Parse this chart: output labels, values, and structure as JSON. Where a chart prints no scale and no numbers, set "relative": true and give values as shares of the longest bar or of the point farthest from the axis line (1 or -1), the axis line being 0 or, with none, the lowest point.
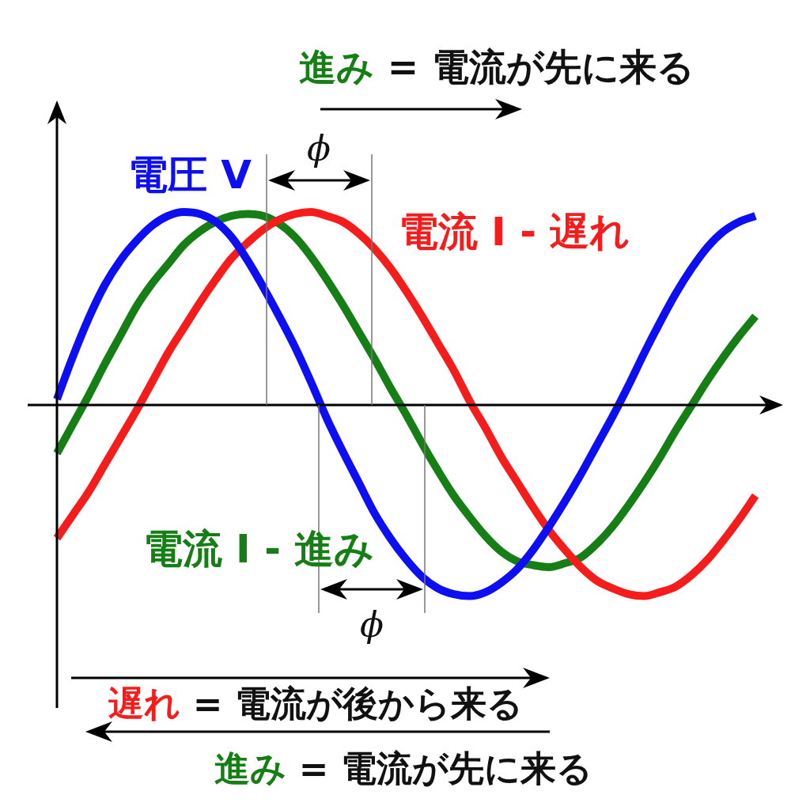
{
  "chart_data": {
    "type": "line",
    "relative": true,
    "line_style": "solid",
    "categories": [
      null,
      null,
      null,
      null,
      null,
      null,
      null,
      null,
      null,
      null,
      null,
      null,
      null,
      null,
      null,
      null,
      null,
      null,
      null,
      null,
      null,
      null,
      null,
      null,
      null,
      null,
      null,
      null,
      null,
      null,
      null,
      null,
      null,
      null,
      null,
      null,
      null,
      null,
      null,
      null,
      null,
      null,
      null,
      null,
      null
    ],
    "series": [
      {
        "name": "電圧 V",
        "color": "#0d0ef2",
        "values": [
          0.03,
          0.25,
          0.45,
          0.62,
          0.75,
          0.85,
          0.93,
          0.98,
          1.0,
          0.99,
          0.95,
          0.87,
          0.75,
          0.61,
          0.46,
          0.3,
          0.12,
          -0.07,
          -0.24,
          -0.4,
          -0.56,
          -0.69,
          -0.8,
          -0.89,
          -0.95,
          -0.98,
          -0.99,
          -0.97,
          -0.92,
          -0.85,
          -0.75,
          -0.63,
          -0.5,
          -0.36,
          -0.21,
          -0.06,
          0.1,
          0.27,
          0.43,
          0.58,
          0.71,
          0.82,
          0.9,
          0.95,
          0.98
        ]
      },
      {
        "name": "電流 I - 遅れ",
        "color": "#f51c1c",
        "values": [
          -0.69,
          -0.57,
          -0.45,
          -0.31,
          -0.17,
          -0.03,
          0.12,
          0.27,
          0.4,
          0.53,
          0.65,
          0.76,
          0.84,
          0.91,
          0.96,
          0.99,
          1.0,
          0.98,
          0.95,
          0.89,
          0.81,
          0.71,
          0.59,
          0.46,
          0.32,
          0.18,
          0.02,
          -0.12,
          -0.27,
          -0.4,
          -0.53,
          -0.65,
          -0.75,
          -0.84,
          -0.91,
          -0.95,
          -0.98,
          -0.99,
          -0.97,
          -0.94,
          -0.88,
          -0.8,
          -0.7,
          -0.59,
          -0.47
        ]
      },
      {
        "name": "電流 I - 進み",
        "color": "#157f15",
        "values": [
          -0.25,
          -0.1,
          0.05,
          0.21,
          0.36,
          0.51,
          0.63,
          0.73,
          0.83,
          0.9,
          0.95,
          0.98,
          0.99,
          0.98,
          0.94,
          0.87,
          0.77,
          0.65,
          0.52,
          0.38,
          0.24,
          0.09,
          -0.05,
          -0.2,
          -0.34,
          -0.47,
          -0.58,
          -0.68,
          -0.76,
          -0.81,
          -0.83,
          -0.84,
          -0.82,
          -0.79,
          -0.72,
          -0.63,
          -0.52,
          -0.4,
          -0.27,
          -0.13,
          0.0,
          0.13,
          0.25,
          0.36,
          0.46
        ]
      }
    ],
    "annotations": [
      "進み = 電流が先に来る",
      "ϕ",
      "ϕ",
      "遅れ = 電流が後から来る",
      "進み = 電流が先に来る"
    ]
  }
}
